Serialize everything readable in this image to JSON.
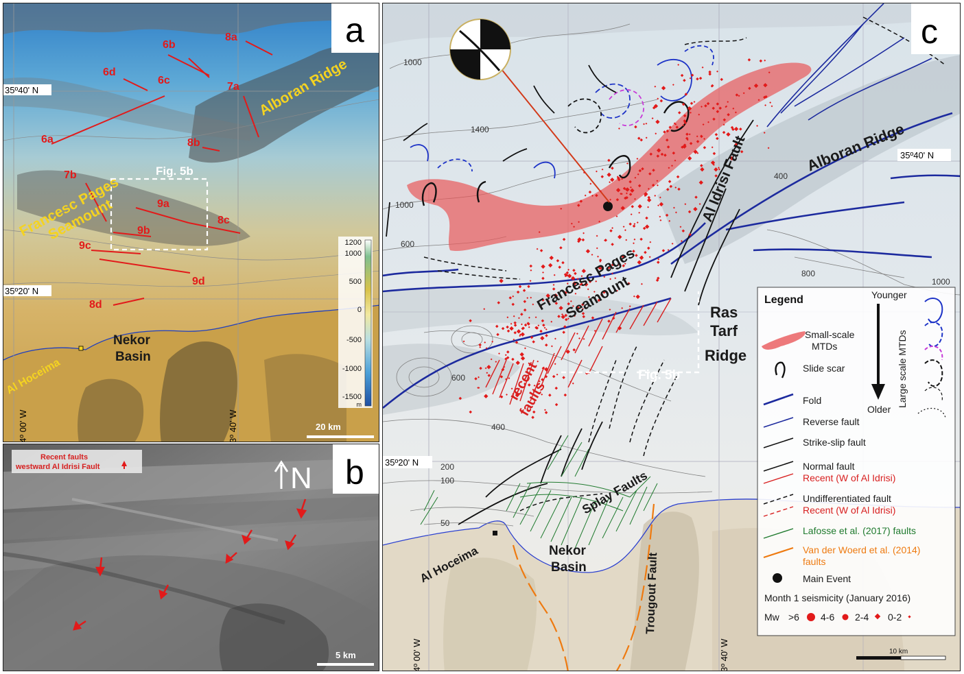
{
  "panel_a": {
    "letter": "a",
    "profiles": [
      "8a",
      "6b",
      "6d",
      "6c",
      "7a",
      "6a",
      "8b",
      "7b",
      "9a",
      "8c",
      "9b",
      "9c",
      "9d",
      "8d"
    ],
    "place_labels": {
      "alboran_ridge": "Alboran Ridge",
      "francesc_pages": "Francesc Pages",
      "seamount": "Seamount",
      "nekor": "Nekor",
      "basin": "Basin",
      "al_hoceima": "Al Hoceima"
    },
    "inset_label": "Fig. 5b",
    "coords": {
      "lat_40": "35º40' N",
      "lat_20": "35º20' N",
      "lon_4": "4º 00' W",
      "lon_3": "3º 40' W"
    },
    "colorbar": {
      "ticks": [
        "1200",
        "1000",
        "500",
        "0",
        "-500",
        "-1000",
        "-1500"
      ],
      "unit": "m"
    },
    "scale": "20 km"
  },
  "panel_b": {
    "letter": "b",
    "caption_line1": "Recent faults",
    "caption_line2": "westward Al Idrisi Fault",
    "north": "N",
    "scale": "5 km"
  },
  "panel_c": {
    "letter": "c",
    "labels": {
      "alboran_ridge": "Alboran Ridge",
      "al_idrisi": "Al Idrisi Fault",
      "francesc": "Francesc Pages",
      "seamount": "Seamount",
      "ras": "Ras",
      "tarf": "Tarf",
      "ridge": "Ridge",
      "recent": "recent",
      "faults": "faults",
      "splay": "Splay Faults",
      "nekor": "Nekor",
      "basin": "Basin",
      "al_hoceima": "Al Hoceima",
      "trougout": "Trougout Fault",
      "fig5b": "Fig. 5b"
    },
    "contours": [
      "1000",
      "1400",
      "1000",
      "600",
      "400",
      "800",
      "1000",
      "600",
      "400",
      "200",
      "100",
      "50"
    ],
    "coords": {
      "lat_40": "35º40' N",
      "lat_20": "35º20' N",
      "lon_4": "4º 00' W",
      "lon_3": "3º 40' W"
    },
    "scale": "10 km",
    "legend": {
      "title": "Legend",
      "younger": "Younger",
      "older": "Older",
      "large_mtds": "Large scale MTDs",
      "small_mtds_1": "Small-scale",
      "small_mtds_2": "MTDs",
      "slide_scar": "Slide scar",
      "fold": "Fold",
      "reverse": "Reverse fault",
      "strike_slip": "Strike-slip fault",
      "normal": "Normal fault",
      "normal_recent": "Recent (W of Al Idrisi)",
      "undiff": "Undifferentiated fault",
      "undiff_recent": "Recent (W of Al Idrisi)",
      "lafosse": "Lafosse et al. (2017) faults",
      "vanderwoerd_1": "Van der Woerd et al. (2014)",
      "vanderwoerd_2": "faults",
      "main_event": "Main Event",
      "seismicity": "Month 1 seismicity (January 2016)",
      "mw": "Mw",
      "mag1": ">6",
      "mag2": "4-6",
      "mag3": "2-4",
      "mag4": "0-2"
    }
  }
}
